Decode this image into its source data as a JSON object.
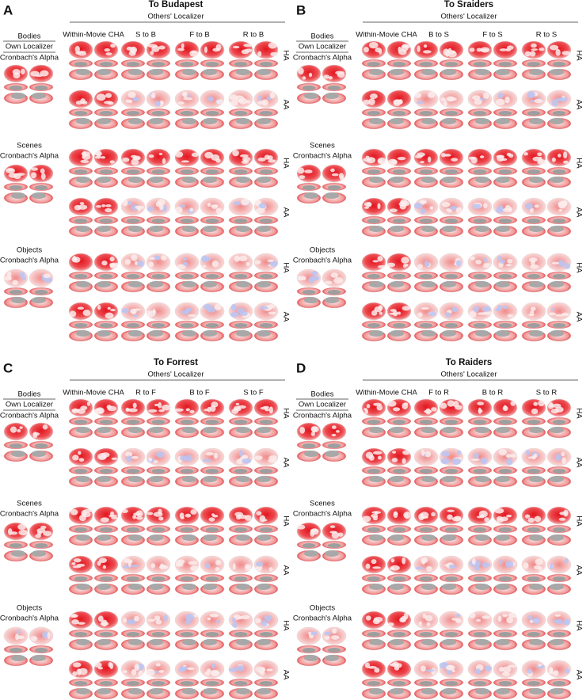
{
  "panels": [
    {
      "letter": "A",
      "title": "To Budapest",
      "group_label": "Others' Localizer",
      "own_label": "Own Localizer",
      "columns": [
        "Within-Movie CHA",
        "S to B",
        "F to B",
        "R to B"
      ],
      "rows": [
        {
          "category": "Bodies",
          "measure": "Cronbach's Alpha"
        },
        {
          "category": "Scenes",
          "measure": "Cronbach's Alpha"
        },
        {
          "category": "Objects",
          "measure": "Cronbach's Alpha"
        }
      ],
      "methods": [
        "HA",
        "AA"
      ]
    },
    {
      "letter": "B",
      "title": "To Sraiders",
      "group_label": "Others' Localizer",
      "own_label": "Own Localizer",
      "columns": [
        "Within-Movie CHA",
        "B to S",
        "F to S",
        "R to S"
      ],
      "rows": [
        {
          "category": "Bodies",
          "measure": "Cronbach's Alpha"
        },
        {
          "category": "Scenes",
          "measure": "Cronbach's Alpha"
        },
        {
          "category": "Objects",
          "measure": "Cronbach's Alpha"
        }
      ],
      "methods": [
        "HA",
        "AA"
      ]
    },
    {
      "letter": "C",
      "title": "To Forrest",
      "group_label": "Others' Localizer",
      "own_label": "Own Localizer",
      "columns": [
        "Within-Movie CHA",
        "R to F",
        "B to F",
        "S to F"
      ],
      "rows": [
        {
          "category": "Bodies",
          "measure": "Cronbach's Alpha"
        },
        {
          "category": "Scenes",
          "measure": "Cronbach's Alpha"
        },
        {
          "category": "Objects",
          "measure": "Cronbach's Alpha"
        }
      ],
      "methods": [
        "HA",
        "AA"
      ]
    },
    {
      "letter": "D",
      "title": "To Raiders",
      "group_label": "Others' Localizer",
      "own_label": "Own Localizer",
      "columns": [
        "Within-Movie CHA",
        "F to R",
        "B to R",
        "S to R"
      ],
      "rows": [
        {
          "category": "Bodies",
          "measure": "Cronbach's Alpha"
        },
        {
          "category": "Scenes",
          "measure": "Cronbach's Alpha"
        },
        {
          "category": "Objects",
          "measure": "Cronbach's Alpha"
        }
      ],
      "methods": [
        "HA",
        "AA"
      ]
    }
  ]
}
